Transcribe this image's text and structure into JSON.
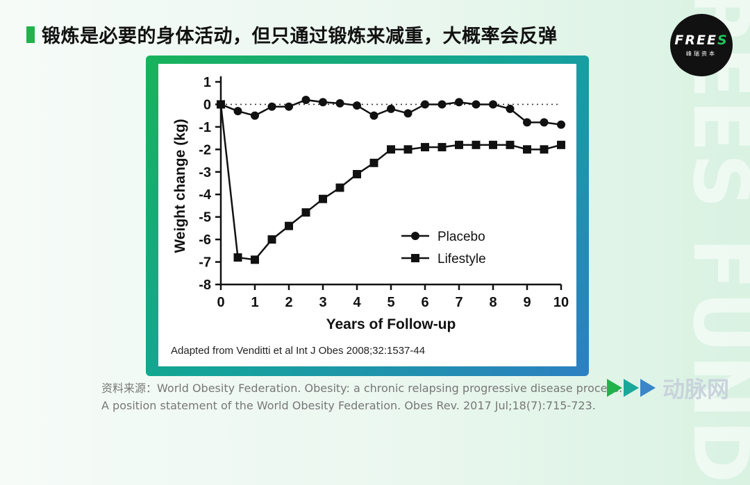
{
  "side_watermark": "FREES FUND",
  "header": {
    "title": "锻炼是必要的身体活动，但只通过锻炼来减重，大概率会反弹"
  },
  "logo": {
    "main_text": "FREES",
    "sub_text": "峰瑞资本"
  },
  "chart_data": {
    "type": "line",
    "xlabel": "Years of Follow-up",
    "ylabel": "Weight change (kg)",
    "xlim": [
      0,
      10
    ],
    "ylim": [
      -8,
      1
    ],
    "x_ticks": [
      0,
      1,
      2,
      3,
      4,
      5,
      6,
      7,
      8,
      9,
      10
    ],
    "y_ticks": [
      1,
      0,
      -1,
      -2,
      -3,
      -4,
      -5,
      -6,
      -7,
      -8
    ],
    "reference_line": {
      "y": 0,
      "style": "dotted"
    },
    "series": [
      {
        "name": "Placebo",
        "marker": "circle",
        "x": [
          0,
          0.5,
          1,
          1.5,
          2,
          2.5,
          3,
          3.5,
          4,
          4.5,
          5,
          5.5,
          6,
          6.5,
          7,
          7.5,
          8,
          8.5,
          9,
          9.5,
          10
        ],
        "values": [
          0,
          -0.3,
          -0.5,
          -0.1,
          -0.1,
          0.2,
          0.1,
          0.05,
          -0.05,
          -0.5,
          -0.2,
          -0.4,
          0,
          0,
          0.1,
          0,
          0,
          -0.2,
          -0.8,
          -0.8,
          -0.9
        ]
      },
      {
        "name": "Lifestyle",
        "marker": "square",
        "x": [
          0,
          0.5,
          1,
          1.5,
          2,
          2.5,
          3,
          3.5,
          4,
          4.5,
          5,
          5.5,
          6,
          6.5,
          7,
          7.5,
          8,
          8.5,
          9,
          9.5,
          10
        ],
        "values": [
          0,
          -6.8,
          -6.9,
          -6.0,
          -5.4,
          -4.8,
          -4.2,
          -3.7,
          -3.1,
          -2.6,
          -2.0,
          -2.0,
          -1.9,
          -1.9,
          -1.8,
          -1.8,
          -1.8,
          -1.8,
          -2.0,
          -2.0,
          -1.8
        ]
      }
    ],
    "legend_position": "bottom-right",
    "note": "Adapted from Venditti et al Int J Obes 2008;32:1537-44"
  },
  "source": {
    "label": "资料来源：",
    "text": "World Obesity Federation. Obesity: a chronic relapsing progressive disease process. A position statement of the World Obesity Federation. Obes Rev. 2017 Jul;18(7):715-723."
  },
  "bottom_watermark": {
    "text": "动脉网",
    "arrow_colors": [
      "#22b24c",
      "#1aa89a",
      "#3a86c8"
    ]
  }
}
